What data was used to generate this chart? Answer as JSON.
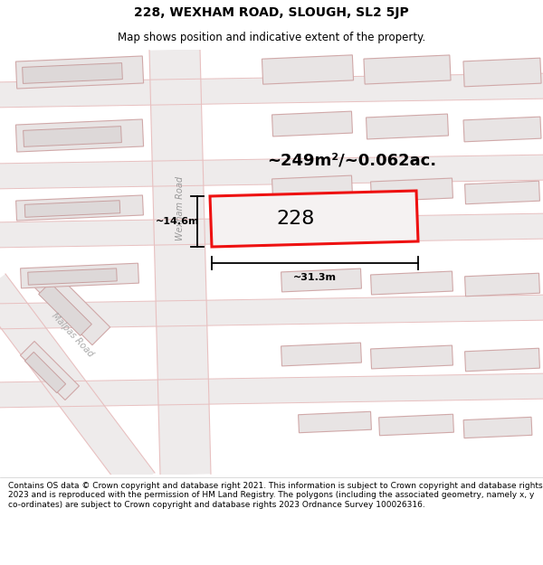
{
  "title": "228, WEXHAM ROAD, SLOUGH, SL2 5JP",
  "subtitle": "Map shows position and indicative extent of the property.",
  "footer": "Contains OS data © Crown copyright and database right 2021. This information is subject to Crown copyright and database rights 2023 and is reproduced with the permission of HM Land Registry. The polygons (including the associated geometry, namely x, y co-ordinates) are subject to Crown copyright and database rights 2023 Ordnance Survey 100026316.",
  "area_label": "~249m²/~0.062ac.",
  "width_label": "~31.3m",
  "height_label": "~14.6m",
  "property_number": "228",
  "road_label_wexham": "Wexham Road",
  "road_label_malpas": "Malpas Road",
  "map_bg": "#f0eeee",
  "building_fill": "#e8e4e4",
  "building_stroke": "#d8b8b8",
  "road_fill": "#f8f4f4",
  "road_stroke_color": "#e8c0c0",
  "property_stroke": "#ee1111",
  "property_fill": "#f5f2f2",
  "title_fontsize": 10,
  "subtitle_fontsize": 8.5,
  "footer_fontsize": 6.5,
  "area_fontsize": 13,
  "number_fontsize": 16,
  "dim_fontsize": 8,
  "road_fontsize": 7
}
